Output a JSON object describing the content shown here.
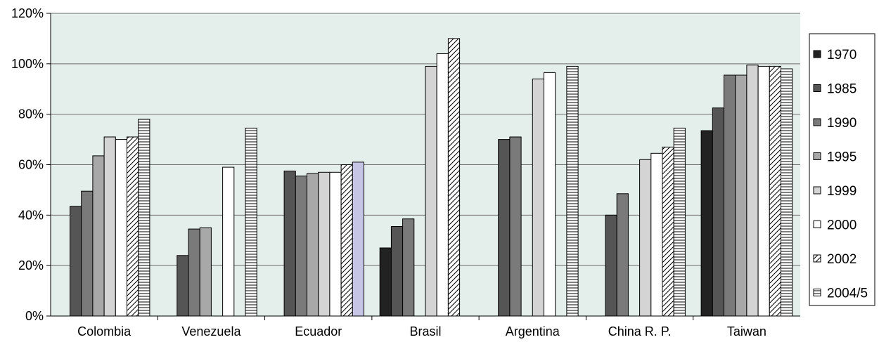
{
  "chart_data": {
    "type": "bar",
    "categories": [
      "Colombia",
      "Venezuela",
      "Ecuador",
      "Brasil",
      "Argentina",
      "China R. P.",
      "Taiwan"
    ],
    "y_tick_labels": [
      "0%",
      "20%",
      "40%",
      "60%",
      "80%",
      "100%",
      "120%"
    ],
    "ylim": [
      0,
      120
    ],
    "grid": true,
    "legend_position": "right",
    "plot_background": "#e4efec",
    "series": [
      {
        "name": "1970",
        "fill": "#222222",
        "pattern": "solid",
        "values": [
          null,
          null,
          null,
          27,
          null,
          null,
          73.5
        ]
      },
      {
        "name": "1985",
        "fill": "#555555",
        "pattern": "solid",
        "values": [
          43.5,
          24,
          57.5,
          35.5,
          70,
          40,
          82.5
        ]
      },
      {
        "name": "1990",
        "fill": "#7a7a7a",
        "pattern": "solid",
        "values": [
          49.5,
          34.5,
          55.5,
          38.5,
          71,
          48.5,
          95.5
        ]
      },
      {
        "name": "1995",
        "fill": "#a8a8a8",
        "pattern": "solid",
        "values": [
          63.5,
          35,
          56.5,
          null,
          null,
          null,
          95.5
        ]
      },
      {
        "name": "1999",
        "fill": "#d4d4d4",
        "pattern": "solid",
        "values": [
          71,
          null,
          57,
          99,
          94,
          62,
          99.5
        ]
      },
      {
        "name": "2000",
        "fill": "#ffffff",
        "pattern": "solid",
        "values": [
          70,
          59,
          57,
          104,
          96.5,
          64.5,
          99
        ]
      },
      {
        "name": "2002",
        "fill": "#ffffff",
        "pattern": "diagonal",
        "values": [
          71,
          null,
          60,
          110,
          null,
          67,
          99
        ]
      },
      {
        "name": "2004/5",
        "fill": "#ffffff",
        "pattern": "horizontal",
        "values": [
          78,
          74.5,
          61,
          null,
          99,
          74.5,
          98
        ]
      }
    ],
    "highlight": {
      "category": "Ecuador",
      "series": "2004/5",
      "color": "#c7c5e6"
    }
  }
}
